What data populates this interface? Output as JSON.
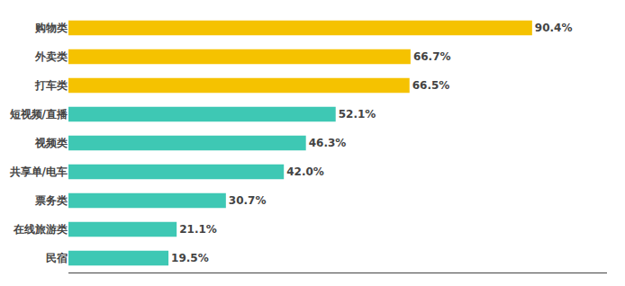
{
  "chart_data": {
    "type": "bar",
    "orientation": "horizontal",
    "categories": [
      "民宿",
      "在线旅游类",
      "票务类",
      "共享单/电车",
      "视频类",
      "短视频/直播",
      "打车类",
      "外卖类",
      "购物类"
    ],
    "values": [
      19.5,
      21.1,
      30.7,
      42.0,
      46.3,
      52.1,
      66.5,
      66.7,
      90.4
    ],
    "value_labels": [
      "19.5%",
      "21.1%",
      "30.7%",
      "42.0%",
      "46.3%",
      "52.1%",
      "66.5%",
      "66.7%",
      "90.4%"
    ],
    "colors": [
      "#3EC8B4",
      "#3EC8B4",
      "#3EC8B4",
      "#3EC8B4",
      "#3EC8B4",
      "#3EC8B4",
      "#F5C200",
      "#F5C200",
      "#F5C200"
    ],
    "xlim": [
      0,
      105
    ],
    "xticks": [],
    "tick_labels": "y",
    "data_labels": true,
    "grid": false
  }
}
